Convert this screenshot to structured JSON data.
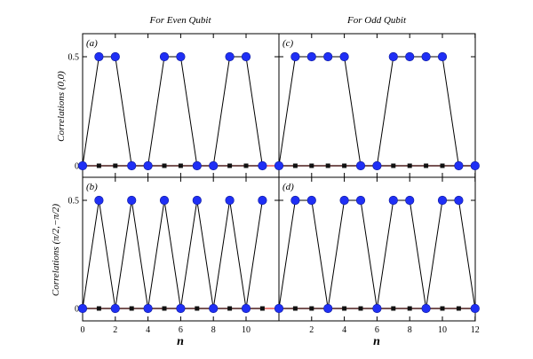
{
  "figure": {
    "col_titles": [
      "For Even Qubit",
      "For Odd Qubit"
    ],
    "row_ylabels": [
      "Correlations (0,0)",
      "Correlations (π/2,−π/2)"
    ],
    "xlabel": "n",
    "colors": {
      "blue_marker": "#1f2ff5",
      "black_marker": "#111111",
      "red_line": "#e0544e",
      "line": "#000000",
      "axis": "#000000"
    }
  },
  "chart_data": [
    {
      "type": "line",
      "panel": "(a)",
      "title": "For Even Qubit",
      "xlabel": "",
      "ylabel": "Correlations (0,0)",
      "xlim": [
        0,
        11
      ],
      "ylim": [
        0,
        0.6
      ],
      "xticks": [
        0,
        2,
        4,
        6,
        8,
        10
      ],
      "yticks": [
        0,
        0.5
      ],
      "ytick_labels": [
        "0",
        "0.5"
      ],
      "x": [
        0,
        1,
        2,
        3,
        4,
        5,
        6,
        7,
        8,
        9,
        10,
        11
      ],
      "series": [
        {
          "marker": "circle",
          "color": "#1f2ff5",
          "connected": true,
          "values": [
            0,
            0.5,
            0.5,
            0,
            0,
            0.5,
            0.5,
            0,
            0,
            0.5,
            0.5,
            0
          ]
        },
        {
          "marker": "square",
          "color": "#111111",
          "connected": true,
          "values": [
            0,
            0,
            0,
            0,
            0,
            0,
            0,
            0,
            0,
            0,
            0,
            0
          ]
        }
      ]
    },
    {
      "type": "line",
      "panel": "(c)",
      "title": "For Odd Qubit",
      "xlabel": "",
      "ylabel": "",
      "xlim": [
        0,
        12
      ],
      "ylim": [
        0,
        0.6
      ],
      "xticks": [
        0,
        2,
        4,
        6,
        8,
        10,
        12
      ],
      "yticks": [
        0,
        0.5
      ],
      "x": [
        0,
        1,
        2,
        3,
        4,
        5,
        6,
        7,
        8,
        9,
        10,
        11,
        12
      ],
      "series": [
        {
          "marker": "circle",
          "color": "#1f2ff5",
          "connected": true,
          "values": [
            0,
            0.5,
            0.5,
            0.5,
            0.5,
            0,
            0,
            0.5,
            0.5,
            0.5,
            0.5,
            0,
            0
          ]
        },
        {
          "marker": "square",
          "color": "#111111",
          "connected": true,
          "values": [
            0,
            0,
            0,
            0,
            0,
            0,
            0,
            0,
            0,
            0,
            0,
            0,
            0
          ]
        }
      ]
    },
    {
      "type": "line",
      "panel": "(b)",
      "title": "",
      "xlabel": "n",
      "ylabel": "Correlations (π/2,−π/2)",
      "xlim": [
        0,
        11
      ],
      "ylim": [
        0,
        0.6
      ],
      "xticks": [
        0,
        2,
        4,
        6,
        8,
        10
      ],
      "xtick_labels": [
        "0",
        "2",
        "4",
        "6",
        "8",
        "10"
      ],
      "yticks": [
        0,
        0.5
      ],
      "ytick_labels": [
        "0",
        "0.5"
      ],
      "x": [
        0,
        1,
        2,
        3,
        4,
        5,
        6,
        7,
        8,
        9,
        10,
        11
      ],
      "series": [
        {
          "marker": "circle",
          "color": "#1f2ff5",
          "connected": true,
          "values": [
            0,
            0.5,
            0,
            0.5,
            0,
            0.5,
            0,
            0.5,
            0,
            0.5,
            0,
            0.5
          ]
        },
        {
          "marker": "square",
          "color": "#111111",
          "connected": true,
          "values": [
            0,
            0,
            0,
            0,
            0,
            0,
            0,
            0,
            0,
            0,
            0,
            0
          ]
        }
      ]
    },
    {
      "type": "line",
      "panel": "(d)",
      "title": "",
      "xlabel": "n",
      "ylabel": "",
      "xlim": [
        0,
        12
      ],
      "ylim": [
        0,
        0.6
      ],
      "xticks": [
        0,
        2,
        4,
        6,
        8,
        10,
        12
      ],
      "xtick_labels": [
        "2",
        "4",
        "6",
        "8",
        "10",
        "12"
      ],
      "yticks": [
        0,
        0.5
      ],
      "x": [
        0,
        1,
        2,
        3,
        4,
        5,
        6,
        7,
        8,
        9,
        10,
        11,
        12
      ],
      "series": [
        {
          "marker": "circle",
          "color": "#1f2ff5",
          "connected": true,
          "values": [
            0,
            0.5,
            0.5,
            0,
            0.5,
            0.5,
            0,
            0.5,
            0.5,
            0,
            0.5,
            0.5,
            0
          ]
        },
        {
          "marker": "square",
          "color": "#111111",
          "connected": true,
          "values": [
            0,
            0,
            0,
            0,
            0,
            0,
            0,
            0,
            0,
            0,
            0,
            0,
            0
          ]
        }
      ]
    }
  ]
}
